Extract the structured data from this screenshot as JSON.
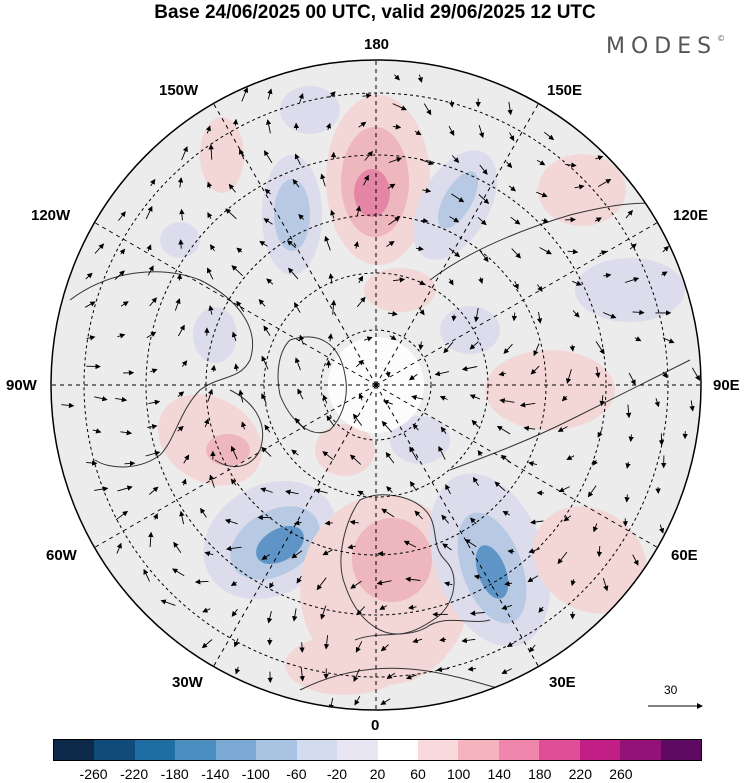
{
  "title": "Base 24/06/2025 00 UTC, valid 29/06/2025 12 UTC",
  "brand": "MODES",
  "brand_mark": "©",
  "longitude_labels": {
    "top": "180",
    "bottom": "0",
    "left": "90W",
    "right": "90E",
    "upper_left": "150W",
    "upper_right": "150E",
    "mid_upper_left": "120W",
    "mid_upper_right": "120E",
    "mid_lower_left": "60W",
    "mid_lower_right": "60E",
    "lower_left": "30W",
    "lower_right": "30E"
  },
  "reference_vector_label": "30",
  "colorbar": {
    "ticks": [
      "-260",
      "-220",
      "-180",
      "-140",
      "-100",
      "-60",
      "-20",
      "20",
      "60",
      "100",
      "140",
      "180",
      "220",
      "260"
    ],
    "colors": [
      "#0d2a4a",
      "#0f4c7c",
      "#1f6ea3",
      "#4a8fc0",
      "#7aa9d4",
      "#a9c3e3",
      "#d3dcee",
      "#e8e6f2",
      "#ffffff",
      "#f8d9dc",
      "#f5b3bd",
      "#ef87ac",
      "#e04e9a",
      "#c21f86",
      "#921278",
      "#5e0a63"
    ]
  },
  "anomaly_colors": {
    "neutral": "#ececec",
    "neg_weak": "#dcdcec",
    "neg_mid": "#b7c9e3",
    "neg_strong": "#5f95c6",
    "pos_weak": "#f3d6d6",
    "pos_mid": "#eeb6bd",
    "pos_strong": "#e586a6"
  }
}
